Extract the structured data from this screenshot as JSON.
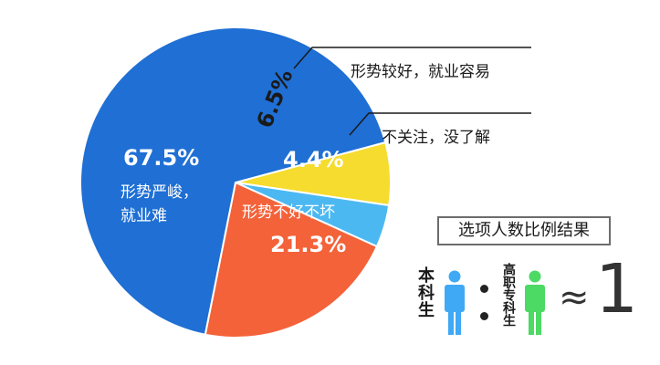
{
  "chart_data": {
    "type": "pie",
    "slices": [
      {
        "label": "形势严峻，就业难",
        "value": 67.5,
        "value_label": "67.5%",
        "color": "#1f6fd4"
      },
      {
        "label": "形势较好，就业容易",
        "value": 6.5,
        "value_label": "6.5%",
        "color": "#f5dc2e"
      },
      {
        "label": "不关注，没了解",
        "value": 4.4,
        "value_label": "4.4%",
        "color": "#4cb8f2"
      },
      {
        "label": "形势不好不坏",
        "value": 21.3,
        "value_label": "21.3%",
        "color": "#f4623a"
      }
    ]
  },
  "pie_labels": {
    "severe_pct": "67.5%",
    "severe_name_line1": "形势严峻，",
    "severe_name_line2": "就业难",
    "good_pct": "6.5%",
    "unconcerned_pct": "4.4%",
    "neutral_name": "形势不好不坏",
    "neutral_pct": "21.3%"
  },
  "callouts": {
    "good": "形势较好，就业容易",
    "unconcerned": "不关注，没了解"
  },
  "legend": {
    "title": "选项人数比例结果",
    "left_label": "本科生",
    "right_label": "高职专科生",
    "approx_symbol": "≈",
    "ratio_value": "1",
    "left_color": "#3fa9f5",
    "right_color": "#4cd964"
  }
}
